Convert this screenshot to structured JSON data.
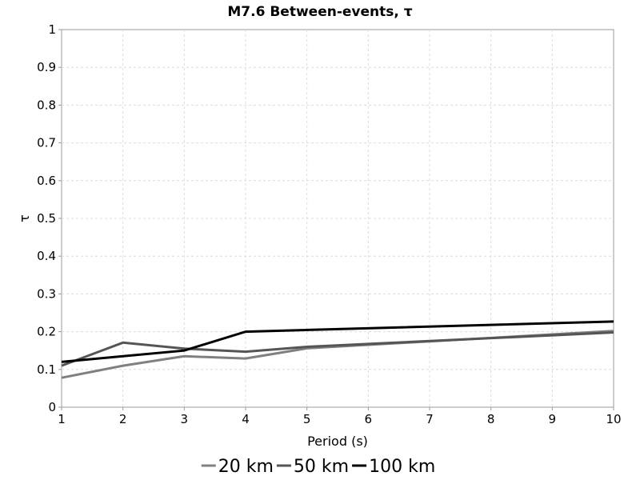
{
  "chart_data": {
    "type": "line",
    "title": "M7.6 Between-events, τ",
    "xlabel": "Period (s)",
    "ylabel": "τ",
    "xlim": [
      1,
      10
    ],
    "ylim": [
      0,
      1
    ],
    "x_ticks": [
      "1",
      "2",
      "3",
      "4",
      "5",
      "6",
      "7",
      "8",
      "9",
      "10"
    ],
    "y_ticks": [
      "0",
      "0.1",
      "0.2",
      "0.3",
      "0.4",
      "0.5",
      "0.6",
      "0.7",
      "0.8",
      "0.9",
      "1"
    ],
    "grid": true,
    "legend_position": "bottom",
    "series": [
      {
        "name": "20 km",
        "color": "#808080",
        "x": [
          1,
          2,
          3,
          4,
          5,
          10
        ],
        "y": [
          0.078,
          0.11,
          0.135,
          0.129,
          0.156,
          0.202
        ]
      },
      {
        "name": "50 km",
        "color": "#555555",
        "x": [
          1,
          2,
          3,
          4,
          5,
          10
        ],
        "y": [
          0.11,
          0.171,
          0.155,
          0.147,
          0.16,
          0.198
        ]
      },
      {
        "name": "100 km",
        "color": "#000000",
        "x": [
          1,
          2,
          3,
          4,
          10
        ],
        "y": [
          0.12,
          0.135,
          0.15,
          0.2,
          0.227
        ]
      }
    ]
  }
}
